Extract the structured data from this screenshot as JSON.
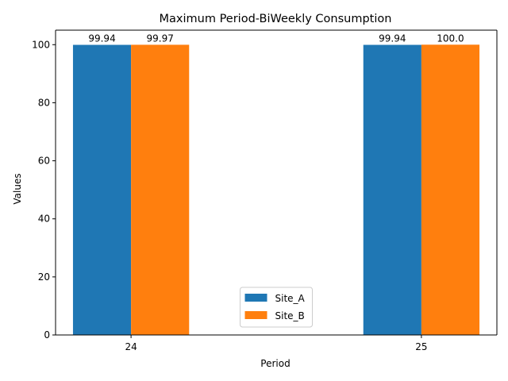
{
  "chart_data": {
    "type": "bar",
    "title": "Maximum Period-BiWeekly Consumption",
    "xlabel": "Period",
    "ylabel": "Values",
    "categories": [
      "24",
      "25"
    ],
    "series": [
      {
        "name": "Site_A",
        "values": [
          99.94,
          99.94
        ],
        "labels": [
          "99.94",
          "99.94"
        ],
        "color": "#1f77b4"
      },
      {
        "name": "Site_B",
        "values": [
          99.97,
          100.0
        ],
        "labels": [
          "99.97",
          "100.0"
        ],
        "color": "#ff7f0e"
      }
    ],
    "ylim": [
      0,
      105
    ],
    "yticks": [
      0,
      20,
      40,
      60,
      80,
      100
    ],
    "grid": false,
    "legend_position": "bottom-center"
  }
}
